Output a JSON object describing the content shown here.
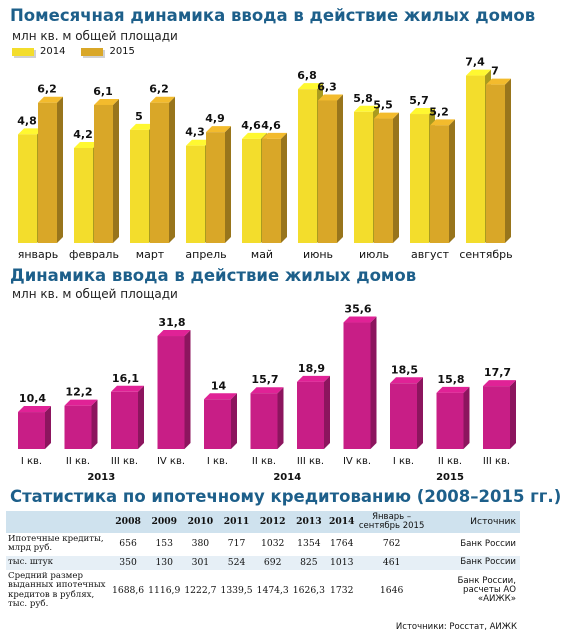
{
  "chart_data": [
    {
      "type": "bar",
      "title": "Помесячная динамика ввода в действие жилых домов",
      "subtitle": "млн кв. м общей площади",
      "categories": [
        "январь",
        "февраль",
        "март",
        "апрель",
        "май",
        "июнь",
        "июль",
        "август",
        "сентябрь"
      ],
      "series": [
        {
          "name": "2014",
          "values": [
            4.8,
            4.2,
            5,
            4.3,
            4.6,
            6.8,
            5.8,
            5.7,
            7.4
          ],
          "labels": [
            "4,8",
            "4,2",
            "5",
            "4,3",
            "4,6",
            "6,8",
            "5,8",
            "5,7",
            "7,4"
          ],
          "color": "#f3dd2c"
        },
        {
          "name": "2015",
          "values": [
            6.2,
            6.1,
            6.2,
            4.9,
            4.6,
            6.3,
            5.5,
            5.2,
            7
          ],
          "labels": [
            "6,2",
            "6,1",
            "6,2",
            "4,9",
            "4,6",
            "6,3",
            "5,5",
            "5,2",
            "7"
          ],
          "color": "#d9a728"
        }
      ],
      "ylim": [
        0,
        8
      ],
      "grid": false
    },
    {
      "type": "bar",
      "title": "Динамика ввода в действие жилых домов",
      "subtitle": "млн кв. м общей площади",
      "categories": [
        "I кв.",
        "II кв.",
        "III кв.",
        "IV кв.",
        "I кв.",
        "II кв.",
        "III кв.",
        "IV кв.",
        "I кв.",
        "II кв.",
        "III кв."
      ],
      "year_groups": [
        {
          "year": "2013",
          "from": 0,
          "to": 3
        },
        {
          "year": "2014",
          "from": 4,
          "to": 7
        },
        {
          "year": "2015",
          "from": 8,
          "to": 10
        }
      ],
      "values": [
        10.4,
        12.2,
        16.1,
        31.8,
        14,
        15.7,
        18.9,
        35.6,
        18.5,
        15.8,
        17.7
      ],
      "labels": [
        "10,4",
        "12,2",
        "16,1",
        "31,8",
        "14",
        "15,7",
        "18,9",
        "35,6",
        "18,5",
        "15,8",
        "17,7"
      ],
      "color": "#c81e86",
      "ylim": [
        0,
        38
      ],
      "grid": false
    }
  ],
  "table": {
    "title": "Статистика по ипотечному кредитованию (2008–2015 гг.)",
    "columns": [
      "2008",
      "2009",
      "2010",
      "2011",
      "2012",
      "2013",
      "2014"
    ],
    "period_header": "Январь – сентябрь 2015",
    "source_header": "Источник",
    "rows": [
      {
        "label": "Ипотечные кредиты, млрд руб.",
        "values": [
          "656",
          "153",
          "380",
          "717",
          "1032",
          "1354",
          "1764",
          "762"
        ],
        "source": "Банк России"
      },
      {
        "label": "тыс. штук",
        "values": [
          "350",
          "130",
          "301",
          "524",
          "692",
          "825",
          "1013",
          "461"
        ],
        "source": "Банк России"
      },
      {
        "label": "Средний размер выданных ипотечных кредитов в рублях, тыс. руб.",
        "values": [
          "1688,6",
          "1116,9",
          "1222,7",
          "1339,5",
          "1474,3",
          "1626,3",
          "1732",
          "1646"
        ],
        "source": "Банк России, расчеты АО «АИЖК»"
      }
    ]
  },
  "footer": "Источники: Росстат, АИЖК"
}
